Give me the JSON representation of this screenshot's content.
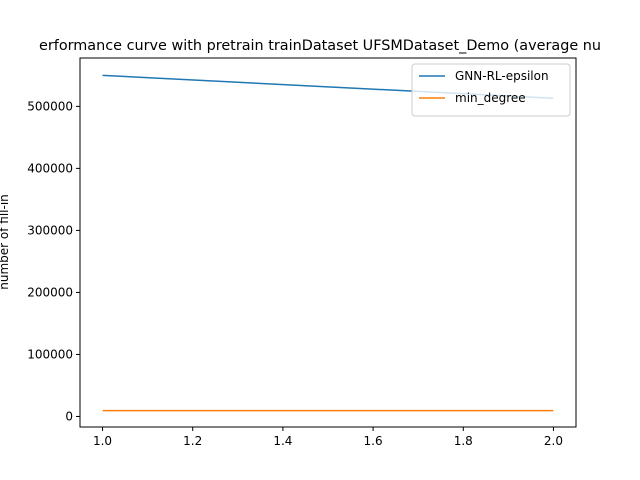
{
  "chart_data": {
    "type": "line",
    "title": "erformance curve with pretrain trainDataset UFSMDataset_Demo (average nu",
    "xlabel": "",
    "ylabel": "number of fill-in",
    "xlim": [
      0.95,
      2.05
    ],
    "ylim": [
      -17000,
      578000
    ],
    "x_ticks": [
      1.0,
      1.2,
      1.4,
      1.6,
      1.8,
      2.0
    ],
    "x_tick_labels": [
      "1.0",
      "1.2",
      "1.4",
      "1.6",
      "1.8",
      "2.0"
    ],
    "y_ticks": [
      0,
      100000,
      200000,
      300000,
      400000,
      500000
    ],
    "y_tick_labels": [
      "0",
      "100000",
      "200000",
      "300000",
      "400000",
      "500000"
    ],
    "grid": false,
    "legend_position": "top-right",
    "series": [
      {
        "name": "GNN-RL-epsilon",
        "color": "#1f77b4",
        "x": [
          1.0,
          2.0
        ],
        "y": [
          550000,
          513000
        ]
      },
      {
        "name": "min_degree",
        "color": "#ff7f0e",
        "x": [
          1.0,
          2.0
        ],
        "y": [
          9500,
          9500
        ]
      }
    ]
  }
}
